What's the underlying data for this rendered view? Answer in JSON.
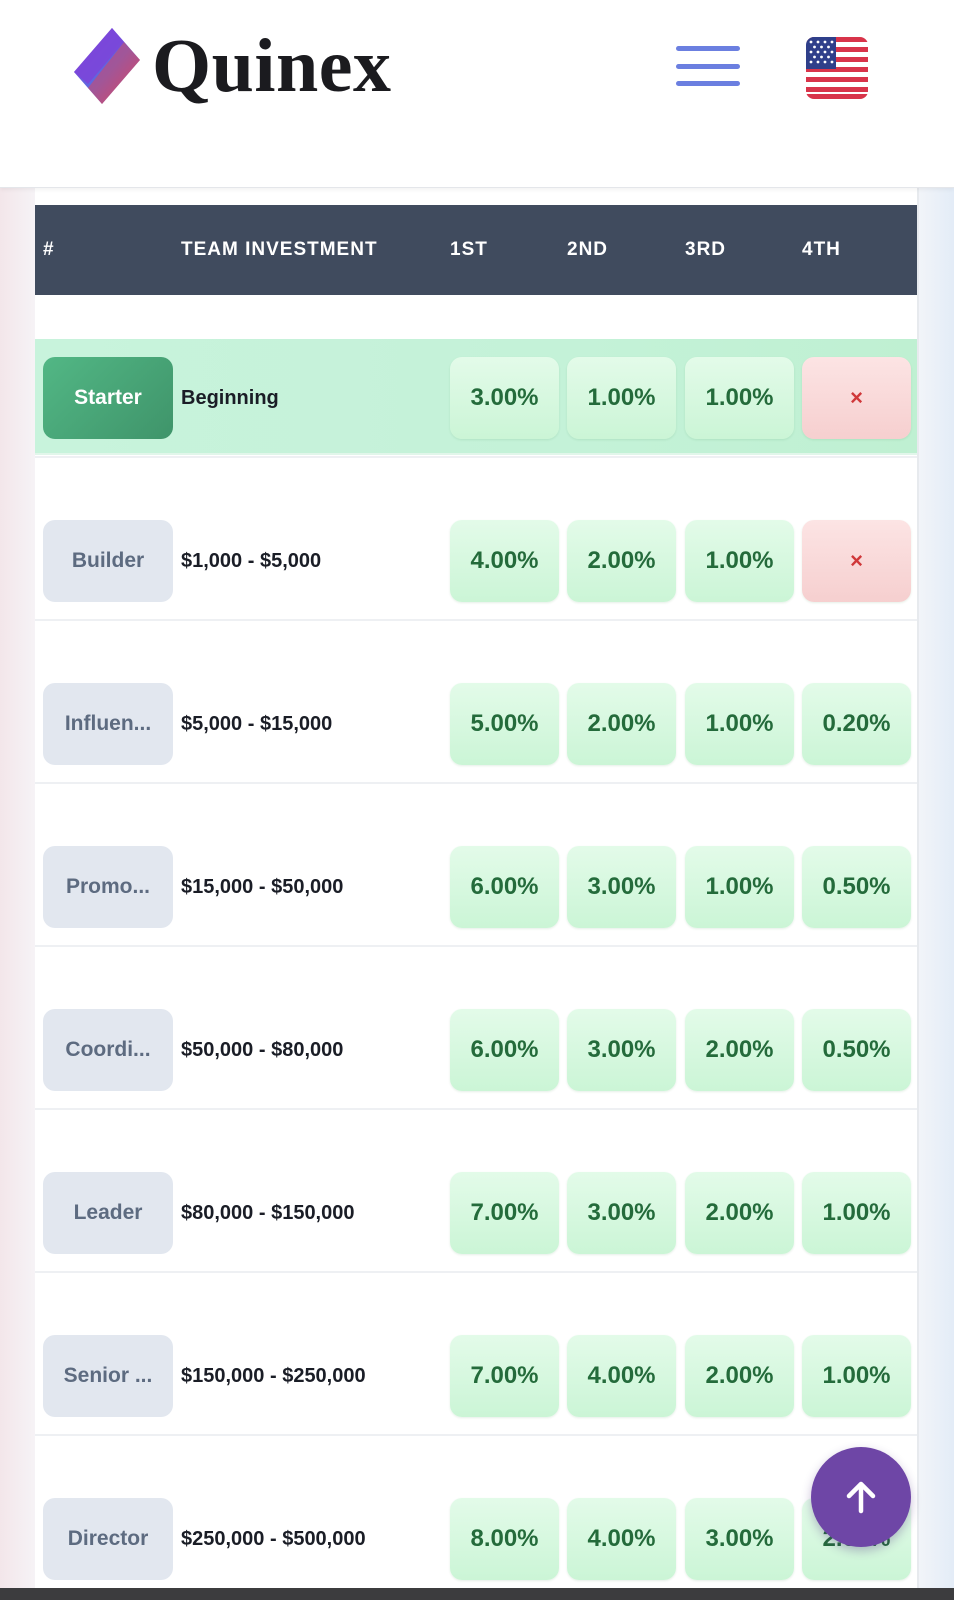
{
  "header": {
    "brand": "Quinex",
    "logo_icon": "quinex-logo-icon",
    "menu_icon": "hamburger-menu-icon",
    "language_icon": "us-flag-icon"
  },
  "table": {
    "columns": [
      "#",
      "TEAM INVESTMENT",
      "1ST",
      "2ND",
      "3RD",
      "4TH"
    ],
    "rows": [
      {
        "rank": "Starter",
        "investment": "Beginning",
        "levels": [
          "3.00%",
          "1.00%",
          "1.00%",
          "×"
        ]
      },
      {
        "rank": "Builder",
        "investment": "$1,000 - $5,000",
        "levels": [
          "4.00%",
          "2.00%",
          "1.00%",
          "×"
        ]
      },
      {
        "rank": "Influen...",
        "investment": "$5,000 - $15,000",
        "levels": [
          "5.00%",
          "2.00%",
          "1.00%",
          "0.20%"
        ]
      },
      {
        "rank": "Promo...",
        "investment": "$15,000 - $50,000",
        "levels": [
          "6.00%",
          "3.00%",
          "1.00%",
          "0.50%"
        ]
      },
      {
        "rank": "Coordi...",
        "investment": "$50,000 - $80,000",
        "levels": [
          "6.00%",
          "3.00%",
          "2.00%",
          "0.50%"
        ]
      },
      {
        "rank": "Leader",
        "investment": "$80,000 - $150,000",
        "levels": [
          "7.00%",
          "3.00%",
          "2.00%",
          "1.00%"
        ]
      },
      {
        "rank": "Senior ...",
        "investment": "$150,000 - $250,000",
        "levels": [
          "7.00%",
          "4.00%",
          "2.00%",
          "1.00%"
        ]
      },
      {
        "rank": "Director",
        "investment": "$250,000 - $500,000",
        "levels": [
          "8.00%",
          "4.00%",
          "3.00%",
          "2.00%"
        ]
      }
    ]
  },
  "scroll_top_icon": "arrow-up-icon",
  "colors": {
    "header_bg": "#404b5e",
    "accent_green": "#246b3b",
    "active_rank": "#4aa87a",
    "fab": "#6e46a6",
    "none_red": "#d0383a"
  }
}
